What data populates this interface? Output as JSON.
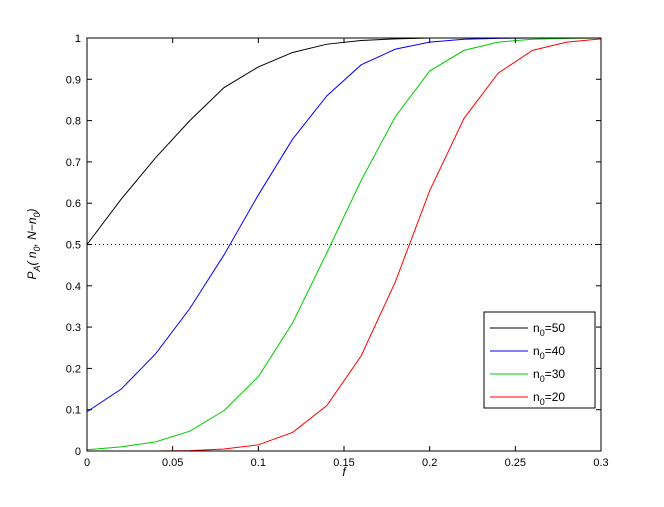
{
  "chart_data": {
    "type": "line",
    "xlabel": "f",
    "ylabel": {
      "text": "P",
      "sub": "A",
      "rest": "( n",
      "sub2": "0",
      "rest2": ", N−n",
      "sub3": "0",
      "close": ")"
    },
    "xlim": [
      0,
      0.3
    ],
    "ylim": [
      0,
      1
    ],
    "xticks": [
      0,
      0.05,
      0.1,
      0.15,
      0.2,
      0.25,
      0.3
    ],
    "xtick_labels": [
      "0",
      "0.05",
      "0.1",
      "0.15",
      "0.2",
      "0.25",
      "0.3"
    ],
    "yticks": [
      0,
      0.1,
      0.2,
      0.3,
      0.4,
      0.5,
      0.6,
      0.7,
      0.8,
      0.9,
      1
    ],
    "ytick_labels": [
      "0",
      "0.1",
      "0.2",
      "0.3",
      "0.4",
      "0.5",
      "0.6",
      "0.7",
      "0.8",
      "0.9",
      "1"
    ],
    "grid": false,
    "legend_position": "bottom-right",
    "reference_line": {
      "y": 0.5,
      "style": "dotted",
      "color": "#000000"
    },
    "x": [
      0,
      0.02,
      0.04,
      0.06,
      0.08,
      0.1,
      0.12,
      0.14,
      0.16,
      0.18,
      0.2,
      0.22,
      0.24,
      0.26,
      0.28,
      0.3
    ],
    "series": [
      {
        "name": "n",
        "sub": "0",
        "suffix": "=50",
        "color": "#000000",
        "values": [
          0.5,
          0.61,
          0.71,
          0.8,
          0.88,
          0.93,
          0.965,
          0.985,
          0.994,
          0.998,
          1.0,
          1.0,
          1.0,
          1.0,
          1.0,
          1.0
        ]
      },
      {
        "name": "n",
        "sub": "0",
        "suffix": "=40",
        "color": "#0000ff",
        "values": [
          0.095,
          0.15,
          0.235,
          0.345,
          0.475,
          0.62,
          0.755,
          0.86,
          0.935,
          0.973,
          0.99,
          0.997,
          0.999,
          1.0,
          1.0,
          1.0
        ]
      },
      {
        "name": "n",
        "sub": "0",
        "suffix": "=30",
        "color": "#00cc00",
        "values": [
          0.003,
          0.01,
          0.022,
          0.048,
          0.098,
          0.18,
          0.31,
          0.48,
          0.655,
          0.81,
          0.92,
          0.97,
          0.99,
          0.997,
          0.999,
          1.0
        ]
      },
      {
        "name": "n",
        "sub": "0",
        "suffix": "=20",
        "color": "#ff0000",
        "values": [
          0.0,
          0.0,
          0.0,
          0.001,
          0.005,
          0.015,
          0.045,
          0.11,
          0.23,
          0.41,
          0.63,
          0.805,
          0.915,
          0.97,
          0.99,
          0.998
        ]
      }
    ]
  }
}
